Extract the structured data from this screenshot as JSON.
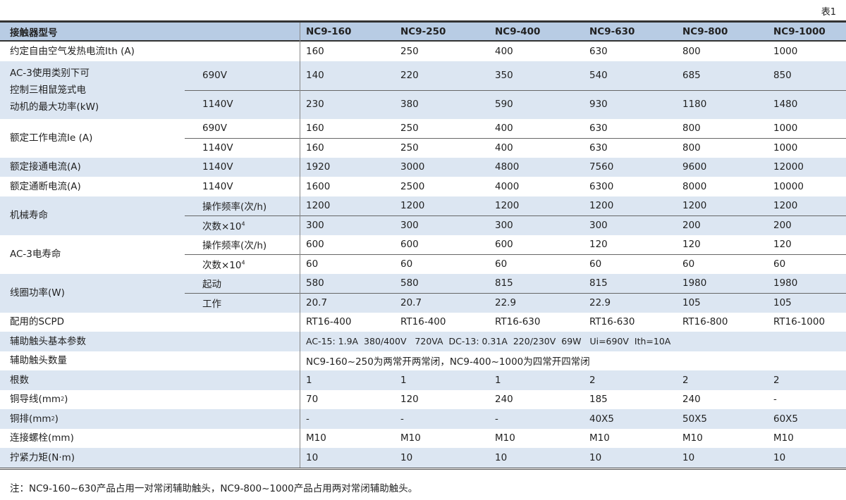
{
  "table_number": "表1",
  "header": {
    "label": "接触器型号",
    "models": [
      "NC9-160",
      "NC9-250",
      "NC9-400",
      "NC9-630",
      "NC9-800",
      "NC9-1000"
    ]
  },
  "colors": {
    "header_bg": "#b8cce4",
    "band_bg": "#dce6f2"
  },
  "groups": [
    {
      "label": "约定自由空气发热电流Ith (A)",
      "rows": [
        {
          "sub": "",
          "values": [
            "160",
            "250",
            "400",
            "630",
            "800",
            "1000"
          ]
        }
      ]
    },
    {
      "label": "AC-3使用类别下可\n控制三相鼠笼式电\n动机的最大功率(kW)",
      "tall": true,
      "rows": [
        {
          "sub": "690V",
          "values": [
            "140",
            "220",
            "350",
            "540",
            "685",
            "850"
          ]
        },
        {
          "sub": "1140V",
          "values": [
            "230",
            "380",
            "590",
            "930",
            "1180",
            "1480"
          ]
        }
      ]
    },
    {
      "label": "额定工作电流Ie (A)",
      "rows": [
        {
          "sub": "690V",
          "values": [
            "160",
            "250",
            "400",
            "630",
            "800",
            "1000"
          ]
        },
        {
          "sub": "1140V",
          "values": [
            "160",
            "250",
            "400",
            "630",
            "800",
            "1000"
          ]
        }
      ]
    },
    {
      "label": "额定接通电流(A)",
      "rows": [
        {
          "sub": "1140V",
          "values": [
            "1920",
            "3000",
            "4800",
            "7560",
            "9600",
            "12000"
          ]
        }
      ]
    },
    {
      "label": "额定通断电流(A)",
      "rows": [
        {
          "sub": "1140V",
          "values": [
            "1600",
            "2500",
            "4000",
            "6300",
            "8000",
            "10000"
          ]
        }
      ]
    },
    {
      "label": "机械寿命",
      "rows": [
        {
          "sub": "操作频率(次/h)",
          "values": [
            "1200",
            "1200",
            "1200",
            "1200",
            "1200",
            "1200"
          ]
        },
        {
          "sub": "次数×10",
          "sup": "4",
          "values": [
            "300",
            "300",
            "300",
            "300",
            "200",
            "200"
          ]
        }
      ]
    },
    {
      "label": "AC-3电寿命",
      "rows": [
        {
          "sub": "操作频率(次/h)",
          "values": [
            "600",
            "600",
            "600",
            "120",
            "120",
            "120"
          ]
        },
        {
          "sub": "次数×10",
          "sup": "4",
          "values": [
            "60",
            "60",
            "60",
            "60",
            "60",
            "60"
          ]
        }
      ]
    },
    {
      "label": "线圈功率(W)",
      "rows": [
        {
          "sub": "起动",
          "values": [
            "580",
            "580",
            "815",
            "815",
            "1980",
            "1980"
          ]
        },
        {
          "sub": "工作",
          "values": [
            "20.7",
            "20.7",
            "22.9",
            "22.9",
            "105",
            "105"
          ]
        }
      ]
    },
    {
      "label": "配用的SCPD",
      "rows": [
        {
          "sub": "",
          "values": [
            "RT16-400",
            "RT16-400",
            "RT16-630",
            "RT16-630",
            "RT16-800",
            "RT16-1000"
          ]
        }
      ]
    },
    {
      "label": "辅助触头基本参数",
      "rows": [
        {
          "sub": "",
          "span": "AC-15: 1.9A  380/400V   720VA  DC-13: 0.31A  220/230V  69W   Ui=690V  Ith=10A",
          "small": true
        }
      ]
    },
    {
      "label": "辅助触头数量",
      "rows": [
        {
          "sub": "",
          "span": "NC9-160~250为两常开两常闭，NC9-400~1000为四常开四常闭"
        }
      ]
    },
    {
      "label": "根数",
      "rows": [
        {
          "sub": "",
          "values": [
            "1",
            "1",
            "1",
            "2",
            "2",
            "2"
          ]
        }
      ]
    },
    {
      "label": "铜导线(mm",
      "label_sup": "2",
      "label_tail": ")",
      "rows": [
        {
          "sub": "",
          "values": [
            "70",
            "120",
            "240",
            "185",
            "240",
            "-"
          ]
        }
      ]
    },
    {
      "label": "铜排(mm",
      "label_sup": "2",
      "label_tail": ")",
      "rows": [
        {
          "sub": "",
          "values": [
            "-",
            "-",
            "-",
            "40X5",
            "50X5",
            "60X5"
          ]
        }
      ]
    },
    {
      "label": "连接螺栓(mm)",
      "rows": [
        {
          "sub": "",
          "values": [
            "M10",
            "M10",
            "M10",
            "M10",
            "M10",
            "M10"
          ]
        }
      ]
    },
    {
      "label": "拧紧力矩(N·m)",
      "rows": [
        {
          "sub": "",
          "values": [
            "10",
            "10",
            "10",
            "10",
            "10",
            "10"
          ]
        }
      ]
    }
  ],
  "note": "注：NC9-160~630产品占用一对常闭辅助触头，NC9-800~1000产品占用两对常闭辅助触头。"
}
